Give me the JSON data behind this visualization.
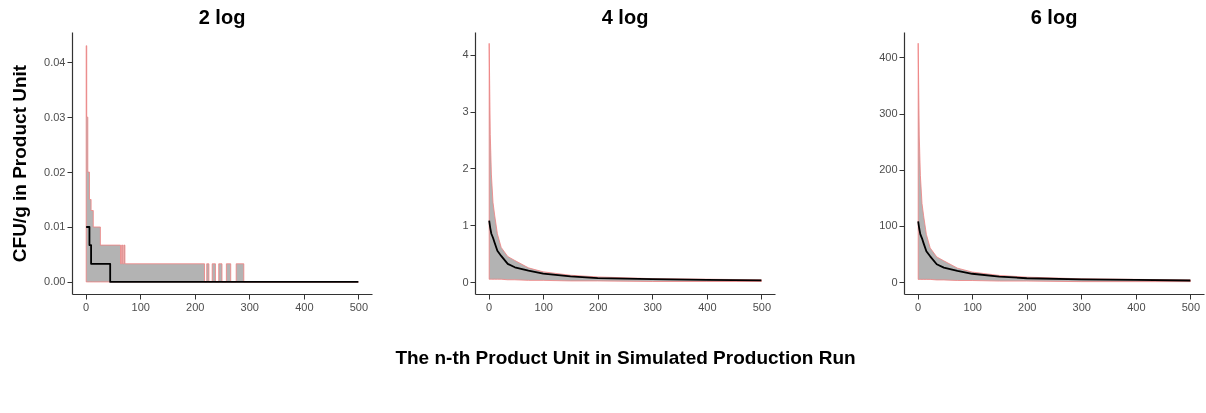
{
  "chart_data": [
    {
      "type": "step",
      "title": "2 log",
      "ylabel": "CFU/g in Product Unit",
      "x": [
        1,
        2,
        4,
        7,
        10,
        14,
        27,
        45,
        64,
        66,
        68,
        70,
        72,
        218,
        222,
        226,
        232,
        238,
        244,
        250,
        258,
        266,
        276,
        290,
        300,
        500
      ],
      "xlim": [
        -25,
        525
      ],
      "xticks": [
        0,
        100,
        200,
        300,
        400,
        500
      ],
      "ylim": [
        -0.0022,
        0.0455
      ],
      "yticks": [
        {
          "value": 0,
          "label": "0.00"
        },
        {
          "value": 0.01,
          "label": "0.01"
        },
        {
          "value": 0.02,
          "label": "0.02"
        },
        {
          "value": 0.03,
          "label": "0.03"
        },
        {
          "value": 0.04,
          "label": "0.04"
        }
      ],
      "series": [
        {
          "color": "#000000",
          "values": [
            0.01,
            0.01,
            0.01,
            0.0067,
            0.0033,
            0.0033,
            0.0033,
            0,
            0,
            0,
            0,
            0,
            0,
            0,
            0,
            0,
            0,
            0,
            0,
            0,
            0,
            0,
            0,
            0,
            0,
            0
          ],
          "lower": [
            0,
            0,
            0,
            0,
            0,
            0,
            0,
            0,
            0,
            0,
            0,
            0,
            0,
            0,
            0,
            0,
            0,
            0,
            0,
            0,
            0,
            0,
            0,
            0,
            0,
            0
          ],
          "upper": [
            0.043,
            0.03,
            0.02,
            0.015,
            0.013,
            0.01,
            0.0067,
            0.0067,
            0.0033,
            0.0067,
            0.0033,
            0.0067,
            0.0033,
            0,
            0.0033,
            0,
            0.0033,
            0,
            0.0033,
            0,
            0.0033,
            0,
            0.0033,
            0,
            0,
            0
          ]
        }
      ]
    },
    {
      "type": "line",
      "title": "4 log",
      "xlabel": "The n-th Product Unit in Simulated Production Run",
      "x": [
        1,
        3,
        5,
        8,
        11,
        16,
        23,
        35,
        48,
        73,
        100,
        150,
        200,
        300,
        400,
        500
      ],
      "xlim": [
        -25,
        525
      ],
      "xticks": [
        0,
        100,
        200,
        300,
        400,
        500
      ],
      "ylim": [
        -0.21,
        4.4
      ],
      "yticks": [
        0,
        1,
        2,
        3,
        4
      ],
      "series": [
        {
          "color": "#000000",
          "values": [
            1.08,
            0.95,
            0.85,
            0.78,
            0.69,
            0.55,
            0.46,
            0.32,
            0.26,
            0.2,
            0.15,
            0.1,
            0.07,
            0.05,
            0.04,
            0.03
          ],
          "lower": [
            0.05,
            0.05,
            0.05,
            0.05,
            0.05,
            0.05,
            0.05,
            0.04,
            0.04,
            0.03,
            0.03,
            0.02,
            0.02,
            0.01,
            0.01,
            0.01
          ],
          "upper": [
            4.2,
            2.6,
            1.9,
            1.4,
            1.18,
            0.85,
            0.61,
            0.45,
            0.38,
            0.25,
            0.18,
            0.12,
            0.09,
            0.06,
            0.05,
            0.04
          ]
        }
      ]
    },
    {
      "type": "line",
      "title": "6 log",
      "x": [
        1,
        3,
        5,
        8,
        11,
        16,
        23,
        35,
        48,
        73,
        100,
        150,
        200,
        300,
        400,
        500
      ],
      "xlim": [
        -25,
        525
      ],
      "xticks": [
        0,
        100,
        200,
        300,
        400,
        500
      ],
      "ylim": [
        -21,
        445
      ],
      "yticks": [
        0,
        100,
        200,
        300,
        400
      ],
      "series": [
        {
          "color": "#000000",
          "values": [
            108,
            95,
            85,
            78,
            69,
            55,
            46,
            32,
            26,
            20,
            15,
            10,
            7,
            5,
            4,
            3
          ],
          "lower": [
            5,
            5,
            5,
            5,
            5,
            5,
            5,
            4,
            4,
            3,
            3,
            2,
            2,
            1,
            1,
            1
          ],
          "upper": [
            425,
            260,
            190,
            140,
            118,
            85,
            61,
            45,
            38,
            25,
            18,
            12,
            9,
            6,
            5,
            4
          ]
        }
      ]
    }
  ]
}
